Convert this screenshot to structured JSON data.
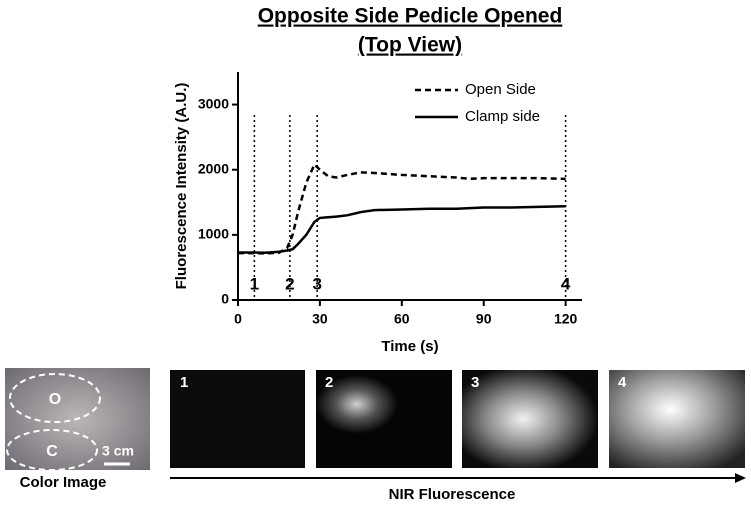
{
  "chart_data": {
    "type": "line",
    "title": "Opposite Side Pedicle Opened",
    "subtitle": "(Top View)",
    "x_label": "Time (s)",
    "y_label": "Fluorescence Intensity (A.U.)",
    "x": [
      0,
      5,
      10,
      15,
      18,
      20,
      22,
      25,
      28,
      30,
      33,
      36,
      40,
      45,
      50,
      60,
      70,
      80,
      85,
      90,
      100,
      110,
      120
    ],
    "series": [
      {
        "name": "Open Side",
        "color": "#000000",
        "style": "dashed",
        "values": [
          720,
          720,
          715,
          725,
          800,
          1000,
          1350,
          1800,
          2080,
          2000,
          1900,
          1880,
          1920,
          1960,
          1950,
          1920,
          1900,
          1880,
          1860,
          1870,
          1870,
          1870,
          1860
        ]
      },
      {
        "name": "Clamp side",
        "color": "#000000",
        "style": "solid",
        "values": [
          730,
          730,
          725,
          740,
          760,
          780,
          860,
          1000,
          1200,
          1260,
          1270,
          1280,
          1300,
          1350,
          1380,
          1390,
          1400,
          1400,
          1410,
          1420,
          1420,
          1430,
          1440
        ]
      }
    ],
    "markers": [
      {
        "x": 6,
        "label": "1"
      },
      {
        "x": 19,
        "label": "2"
      },
      {
        "x": 29,
        "label": "3"
      },
      {
        "x": 120,
        "label": "4"
      }
    ],
    "xlim": [
      0,
      126
    ],
    "xticks": [
      0,
      30,
      60,
      90,
      120
    ],
    "ylim": [
      0,
      3500
    ],
    "yticks": [
      0,
      1000,
      2000,
      3000
    ],
    "grid": false,
    "legend": "top-right"
  },
  "panels": {
    "color_image": {
      "caption": "Color Image",
      "regions": [
        "O",
        "C"
      ],
      "scale": "3 cm"
    },
    "nir_labels": [
      "1",
      "2",
      "3",
      "4"
    ],
    "nir_caption": "NIR Fluorescence"
  }
}
